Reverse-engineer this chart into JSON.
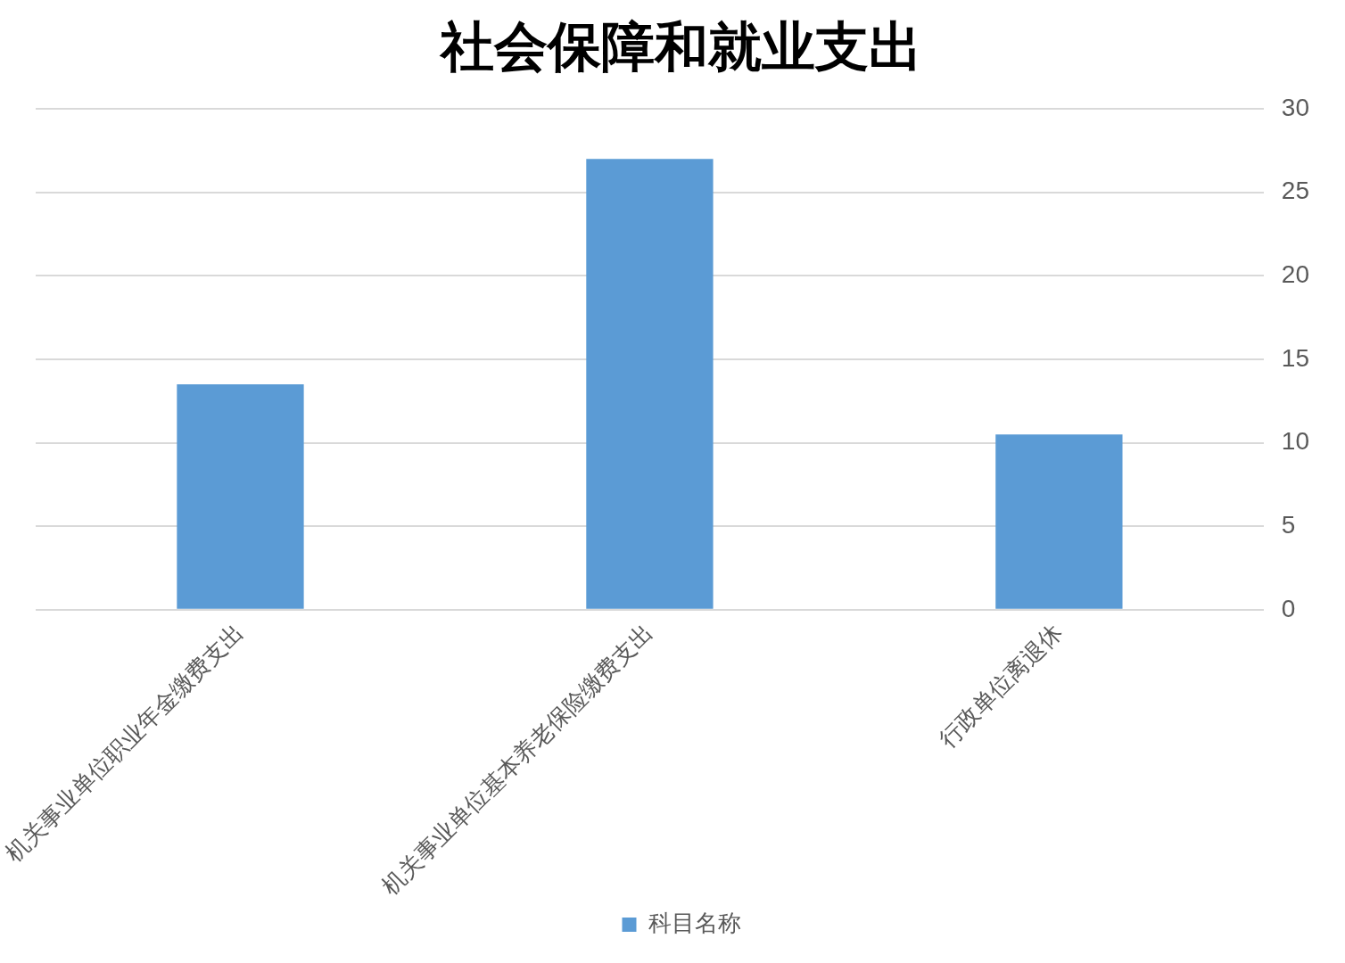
{
  "chart_data": {
    "type": "bar",
    "title": "社会保障和就业支出",
    "categories": [
      "机关事业单位职业年金缴费支出",
      "机关事业单位基本养老保险缴费支出",
      "行政单位离退休"
    ],
    "series": [
      {
        "name": "科目名称",
        "color": "#5b9bd5",
        "values": [
          13.5,
          27.0,
          10.5
        ]
      }
    ],
    "ylim": [
      0,
      30
    ],
    "yticks": [
      0,
      5,
      10,
      15,
      20,
      25,
      30
    ],
    "grid": "y",
    "legend": "bottom"
  }
}
